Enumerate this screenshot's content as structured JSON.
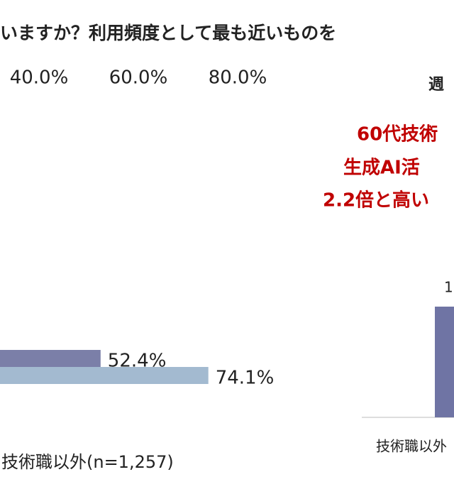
{
  "chart_data": [
    {
      "type": "hbar",
      "title": "いますか？利用頻度として最も近いものを",
      "categories": [
        "技術職以外(n=1,257)"
      ],
      "series": [
        {
          "color": "#7b7fa8",
          "values": [
            52.4
          ],
          "value_labels": [
            "52.4%"
          ]
        },
        {
          "color": "#a3bad0",
          "values": [
            74.1
          ],
          "value_labels": [
            "74.1%"
          ]
        }
      ],
      "xlim": [
        0,
        100
      ],
      "xticks": [
        {
          "value": 40,
          "label": "40.0%"
        },
        {
          "value": 60,
          "label": "60.0%"
        },
        {
          "value": 80,
          "label": "80.0%"
        }
      ]
    },
    {
      "type": "bar",
      "title": "週",
      "annotation": [
        "60代技術",
        "生成AI活",
        "2.2倍と高い"
      ],
      "annotation_color": "#c00000",
      "categories": [
        "技術職以外"
      ],
      "value_labels": [
        "1"
      ]
    }
  ]
}
